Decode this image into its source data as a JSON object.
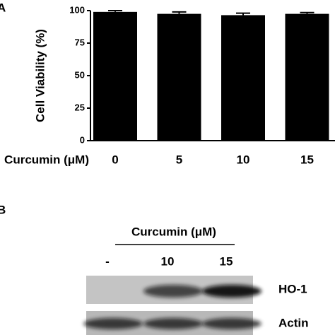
{
  "chart_data": {
    "type": "bar",
    "panel_label": "A",
    "ylabel": "Cell Viability (%)",
    "xlabel": "Curcumin (μM)",
    "categories": [
      "0",
      "5",
      "10",
      "15"
    ],
    "values": [
      99,
      97.5,
      96.5,
      97.5
    ],
    "errors": [
      1,
      1.5,
      1.5,
      1
    ],
    "color": "#000000",
    "ylim": [
      0,
      100
    ],
    "yticks": [
      0,
      25,
      50,
      75,
      100
    ]
  },
  "blot": {
    "panel_label": "B",
    "title": "Curcumin (μM)",
    "lanes": [
      "-",
      "10",
      "15"
    ],
    "rows": [
      "HO-1",
      "Actin"
    ]
  }
}
